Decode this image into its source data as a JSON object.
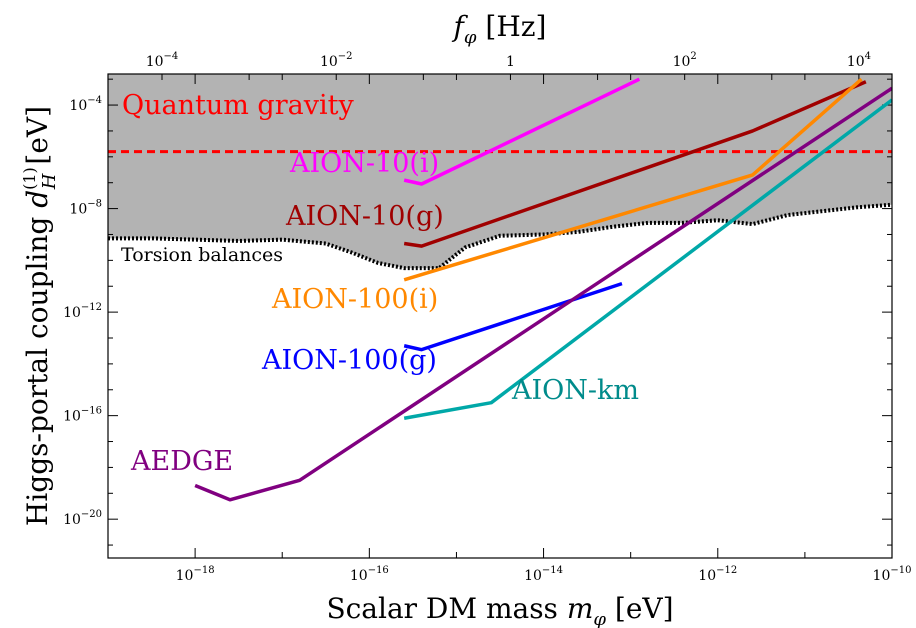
{
  "chart_data": {
    "type": "line",
    "xlabel": "Scalar DM mass m_φ [eV]",
    "ylabel": "Higgs-portal coupling d_H^(1) [eV]",
    "top_xlabel": "f_φ [Hz]",
    "x_scale": "log",
    "y_scale": "log",
    "xlim_log10": [
      -19.0,
      -10.0
    ],
    "ylim_log10": [
      -21.5,
      -2.8
    ],
    "top_xlim_log10": [
      -4.62,
      4.38
    ],
    "x_ticks": [
      {
        "v": -18,
        "base": "10",
        "exp": "−18"
      },
      {
        "v": -16,
        "base": "10",
        "exp": "−16"
      },
      {
        "v": -14,
        "base": "10",
        "exp": "−14"
      },
      {
        "v": -12,
        "base": "10",
        "exp": "−12"
      },
      {
        "v": -10,
        "base": "10",
        "exp": "−10"
      }
    ],
    "top_ticks": [
      {
        "v": -4,
        "base": "10",
        "exp": "−4"
      },
      {
        "v": -2,
        "base": "10",
        "exp": "−2"
      },
      {
        "v": 0,
        "base": "1",
        "exp": ""
      },
      {
        "v": 2,
        "base": "10",
        "exp": "2"
      },
      {
        "v": 4,
        "base": "10",
        "exp": "4"
      }
    ],
    "y_ticks": [
      {
        "v": -4,
        "base": "10",
        "exp": "−4"
      },
      {
        "v": -8,
        "base": "10",
        "exp": "−8"
      },
      {
        "v": -12,
        "base": "10",
        "exp": "−12"
      },
      {
        "v": -16,
        "base": "10",
        "exp": "−16"
      },
      {
        "v": -20,
        "base": "10",
        "exp": "−20"
      }
    ],
    "excluded_region": {
      "name": "Torsion balances",
      "color": "#b3b3b3",
      "boundary_log10": [
        [
          -19.0,
          -9.15
        ],
        [
          -18.5,
          -9.15
        ],
        [
          -18.0,
          -9.2
        ],
        [
          -17.5,
          -9.25
        ],
        [
          -17.0,
          -9.2
        ],
        [
          -16.5,
          -9.35
        ],
        [
          -16.2,
          -9.7
        ],
        [
          -15.9,
          -10.1
        ],
        [
          -15.6,
          -10.3
        ],
        [
          -15.2,
          -10.3
        ],
        [
          -14.9,
          -9.5
        ],
        [
          -14.5,
          -9.05
        ],
        [
          -14.0,
          -9.0
        ],
        [
          -13.6,
          -8.9
        ],
        [
          -13.2,
          -8.7
        ],
        [
          -12.8,
          -8.55
        ],
        [
          -12.4,
          -8.55
        ],
        [
          -12.0,
          -8.45
        ],
        [
          -11.6,
          -8.6
        ],
        [
          -11.2,
          -8.25
        ],
        [
          -10.8,
          -8.1
        ],
        [
          -10.4,
          -7.95
        ],
        [
          -10.0,
          -7.85
        ]
      ]
    },
    "quantum_gravity": {
      "name": "Quantum gravity",
      "y_log10": -5.8,
      "color": "#ff0000"
    },
    "series": [
      {
        "name": "AION-10(i)",
        "color": "#ff00ff",
        "points": [
          [
            -15.6,
            -6.9
          ],
          [
            -15.4,
            -7.05
          ],
          [
            -12.9,
            -3.0
          ]
        ]
      },
      {
        "name": "AION-10(g)",
        "color": "#a00000",
        "points": [
          [
            -15.6,
            -9.35
          ],
          [
            -15.4,
            -9.45
          ],
          [
            -11.6,
            -5.0
          ],
          [
            -10.3,
            -3.1
          ]
        ]
      },
      {
        "name": "AION-100(i)",
        "color": "#ff8800",
        "points": [
          [
            -15.6,
            -10.75
          ],
          [
            -15.4,
            -10.55
          ],
          [
            -11.6,
            -6.7
          ],
          [
            -10.35,
            -3.0
          ]
        ]
      },
      {
        "name": "AION-100(g)",
        "color": "#0000ff",
        "points": [
          [
            -15.6,
            -13.3
          ],
          [
            -15.4,
            -13.45
          ],
          [
            -13.1,
            -10.9
          ]
        ]
      },
      {
        "name": "AION-km",
        "color": "#00a8a8",
        "points": [
          [
            -15.6,
            -16.1
          ],
          [
            -14.6,
            -15.5
          ],
          [
            -10.0,
            -3.8
          ]
        ]
      },
      {
        "name": "AEDGE",
        "color": "#800080",
        "points": [
          [
            -18.0,
            -18.7
          ],
          [
            -17.6,
            -19.25
          ],
          [
            -16.8,
            -18.5
          ],
          [
            -10.0,
            -3.35
          ]
        ]
      }
    ],
    "annotations": [
      {
        "text": "Quantum gravity",
        "color": "#ff0000"
      },
      {
        "text": "AION-10(i)",
        "color": "#ff00ff"
      },
      {
        "text": "AION-10(g)",
        "color": "#a00000"
      },
      {
        "text": "AION-100(i)",
        "color": "#ff8800"
      },
      {
        "text": "AION-100(g)",
        "color": "#0000ff"
      },
      {
        "text": "AION-km",
        "color": "#008b8b"
      },
      {
        "text": "AEDGE",
        "color": "#800080"
      },
      {
        "text": "Torsion balances",
        "color": "#000000"
      }
    ]
  }
}
